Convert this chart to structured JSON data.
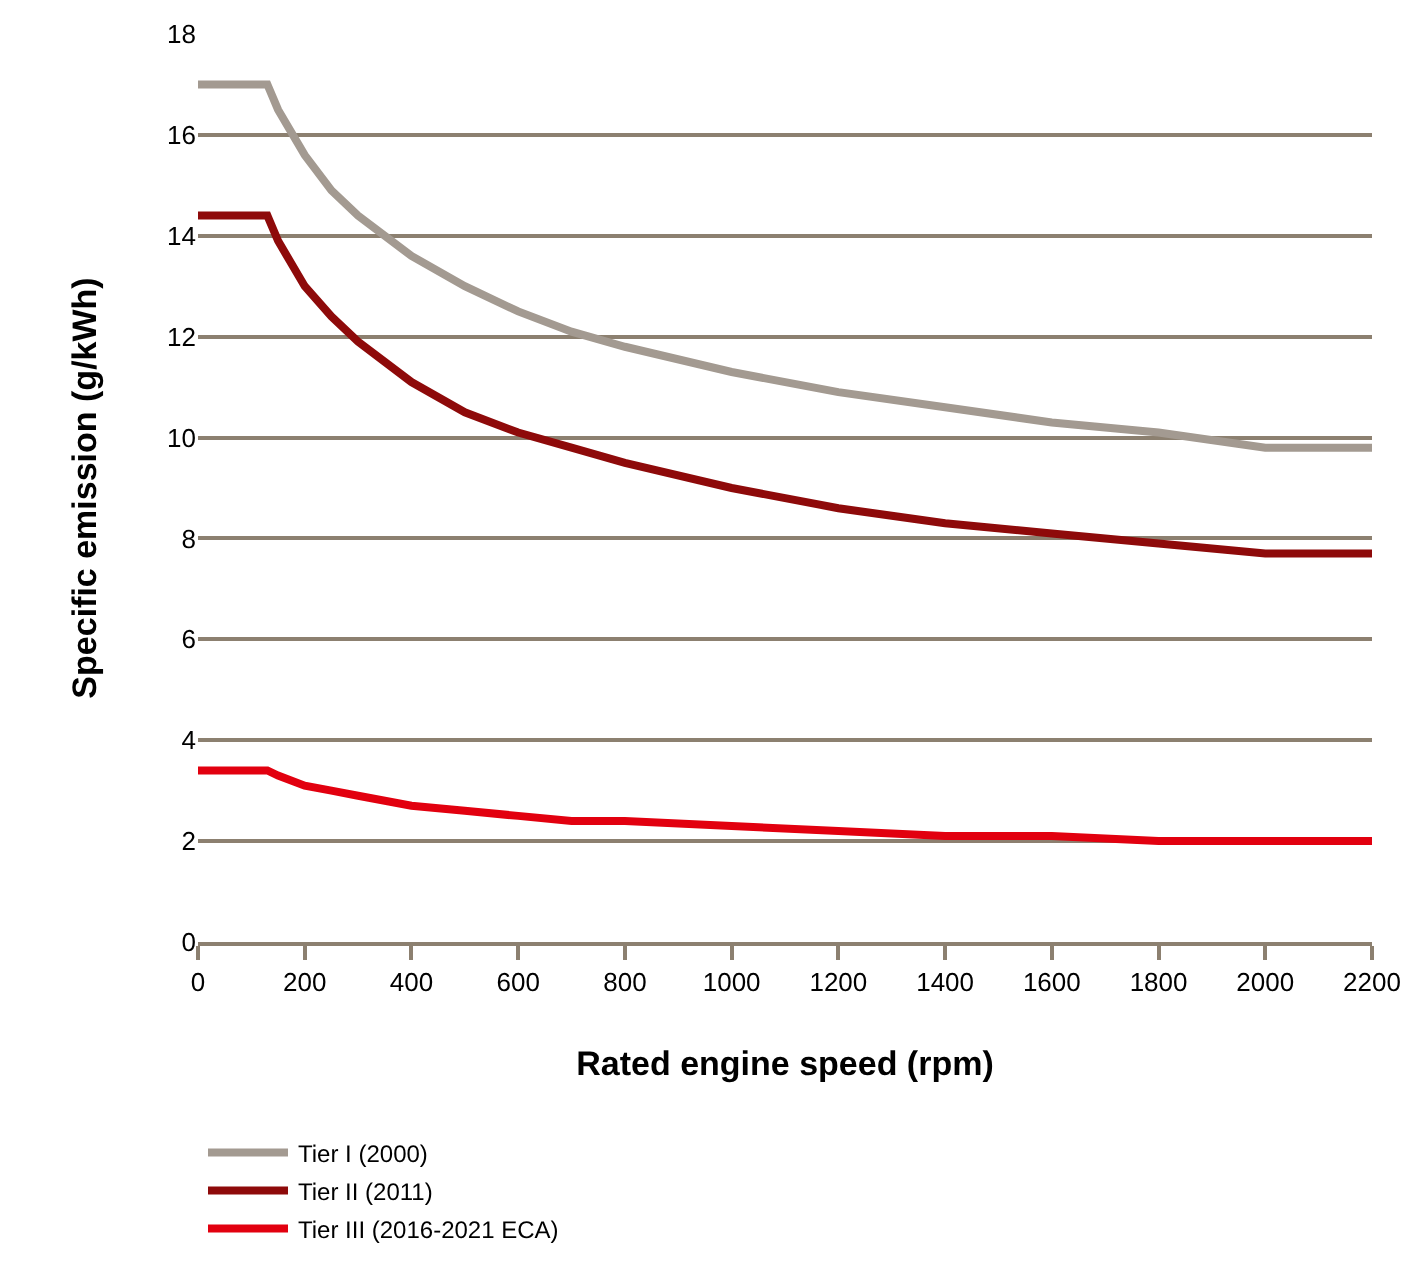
{
  "chart_data": {
    "type": "line",
    "xlabel": "Rated engine speed (rpm)",
    "ylabel": "Specific emission (g/kWh)",
    "x": [
      0,
      130,
      150,
      200,
      250,
      300,
      400,
      500,
      600,
      700,
      800,
      1000,
      1200,
      1400,
      1600,
      1800,
      2000,
      2200
    ],
    "series": [
      {
        "name": "Tier I (2000)",
        "color": "#a39a91",
        "values": [
          17.0,
          17.0,
          16.5,
          15.6,
          14.9,
          14.4,
          13.6,
          13.0,
          12.5,
          12.1,
          11.8,
          11.3,
          10.9,
          10.6,
          10.3,
          10.1,
          9.8,
          9.8
        ]
      },
      {
        "name": "Tier II (2011)",
        "color": "#8e0a0a",
        "values": [
          14.4,
          14.4,
          13.9,
          13.0,
          12.4,
          11.9,
          11.1,
          10.5,
          10.1,
          9.8,
          9.5,
          9.0,
          8.6,
          8.3,
          8.1,
          7.9,
          7.7,
          7.7
        ]
      },
      {
        "name": "Tier III (2016-2021 ECA)",
        "color": "#e2000f",
        "values": [
          3.4,
          3.4,
          3.3,
          3.1,
          3.0,
          2.9,
          2.7,
          2.6,
          2.5,
          2.4,
          2.4,
          2.3,
          2.2,
          2.1,
          2.1,
          2.0,
          2.0,
          2.0
        ]
      }
    ],
    "xlim": [
      0,
      2200
    ],
    "xticks": [
      0,
      200,
      400,
      600,
      800,
      1000,
      1200,
      1400,
      1600,
      1800,
      2000,
      2200
    ],
    "ylim": [
      0,
      18
    ],
    "yticks": [
      0,
      2,
      4,
      6,
      8,
      10,
      12,
      14,
      16,
      18
    ],
    "grid": "y",
    "legend": "bottom left",
    "marker": "none",
    "line_style": "solid"
  }
}
